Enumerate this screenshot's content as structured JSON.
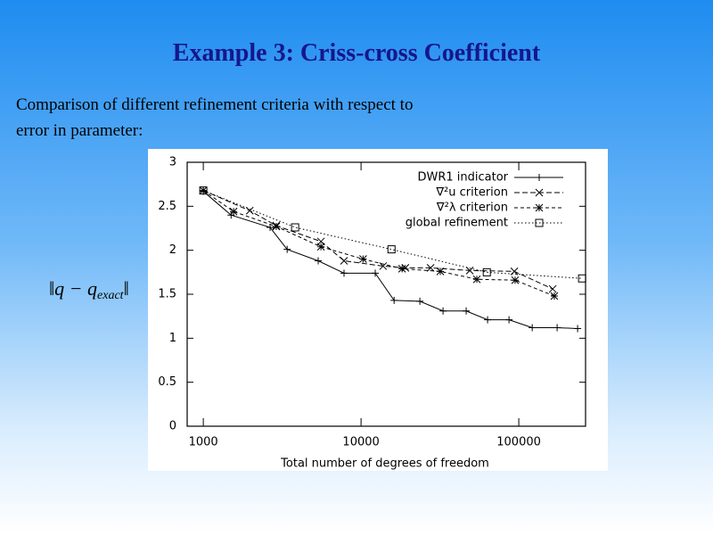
{
  "slide_title": "Example 3: Criss-cross Coefficient",
  "text_lines": [
    "Comparison of different refinement criteria with respect to",
    "error in parameter:"
  ],
  "chart_data": {
    "type": "line",
    "ylabel_parts": [
      "‖q − q",
      "exact",
      "‖"
    ],
    "xlabel": "Total number of degrees of freedom",
    "xscale": "log",
    "xlim": [
      790,
      265000
    ],
    "xticks": [
      1000,
      10000,
      100000
    ],
    "ylim": [
      0,
      3
    ],
    "yticks": [
      0,
      0.5,
      1,
      1.5,
      2,
      2.5,
      3
    ],
    "legend": "top-right",
    "series": [
      {
        "name": "DWR1 indicator",
        "color": "#000000",
        "marker": "plus",
        "dash": "solid",
        "x": [
          1000,
          1500,
          2650,
          3400,
          5350,
          7800,
          12300,
          16200,
          23600,
          33100,
          46400,
          63400,
          86700,
          121700,
          175000,
          236000
        ],
        "values": [
          2.67,
          2.4,
          2.26,
          2.01,
          1.88,
          1.74,
          1.74,
          1.43,
          1.42,
          1.31,
          1.31,
          1.21,
          1.21,
          1.12,
          1.12,
          1.11
        ]
      },
      {
        "name": "∇²u criterion",
        "color": "#000000",
        "marker": "cross",
        "dash": "dashed",
        "x": [
          1000,
          1970,
          2900,
          5570,
          7800,
          13800,
          19100,
          27600,
          48900,
          93700,
          164000
        ],
        "values": [
          2.68,
          2.45,
          2.28,
          2.1,
          1.88,
          1.82,
          1.8,
          1.8,
          1.77,
          1.76,
          1.56
        ]
      },
      {
        "name": "∇²λ criterion",
        "color": "#000000",
        "marker": "star",
        "dash": "dashed-short",
        "x": [
          1000,
          1556,
          2900,
          5570,
          10300,
          18200,
          31800,
          54200,
          94800,
          168000
        ],
        "values": [
          2.68,
          2.44,
          2.27,
          2.04,
          1.9,
          1.79,
          1.76,
          1.67,
          1.66,
          1.48
        ]
      },
      {
        "name": "global refinement",
        "color": "#000000",
        "marker": "square",
        "dash": "dotted",
        "x": [
          1000,
          3820,
          15600,
          62700,
          252000
        ],
        "values": [
          2.68,
          2.26,
          2.01,
          1.75,
          1.68
        ]
      }
    ]
  }
}
